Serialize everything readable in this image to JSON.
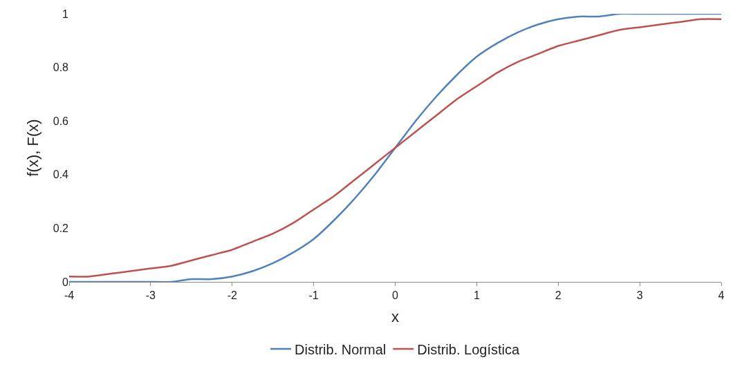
{
  "chart_data": {
    "type": "line",
    "xlabel": "x",
    "ylabel": "f(x), F(x)",
    "x": [
      -4,
      -3.75,
      -3.5,
      -3.25,
      -3,
      -2.75,
      -2.5,
      -2.25,
      -2,
      -1.75,
      -1.5,
      -1.25,
      -1,
      -0.75,
      -0.5,
      -0.25,
      0,
      0.25,
      0.5,
      0.75,
      1,
      1.25,
      1.5,
      1.75,
      2,
      2.25,
      2.5,
      2.75,
      3,
      3.25,
      3.5,
      3.75,
      4
    ],
    "series": [
      {
        "name": "Distrib. Normal",
        "color": "#4f81bd",
        "values": [
          0,
          0,
          0,
          0,
          0,
          0,
          0.01,
          0.01,
          0.02,
          0.04,
          0.07,
          0.11,
          0.16,
          0.23,
          0.31,
          0.4,
          0.5,
          0.6,
          0.69,
          0.77,
          0.84,
          0.89,
          0.93,
          0.96,
          0.98,
          0.99,
          0.99,
          1,
          1,
          1,
          1,
          1,
          1
        ]
      },
      {
        "name": "Distrib. Logística",
        "color": "#c0504d",
        "values": [
          0.02,
          0.02,
          0.03,
          0.04,
          0.05,
          0.06,
          0.08,
          0.1,
          0.12,
          0.15,
          0.18,
          0.22,
          0.27,
          0.32,
          0.38,
          0.44,
          0.5,
          0.56,
          0.62,
          0.68,
          0.73,
          0.78,
          0.82,
          0.85,
          0.88,
          0.9,
          0.92,
          0.94,
          0.95,
          0.96,
          0.97,
          0.98,
          0.98
        ]
      }
    ],
    "xlim": [
      -4,
      4
    ],
    "xticks": [
      -4,
      -3,
      -2,
      -1,
      0,
      1,
      2,
      3,
      4
    ],
    "ylim": [
      0,
      1
    ],
    "yticks": [
      0,
      0.2,
      0.4,
      0.6,
      0.8,
      1
    ],
    "grid": false,
    "legend": "bottom",
    "marker": "none",
    "line_style": "solid"
  }
}
